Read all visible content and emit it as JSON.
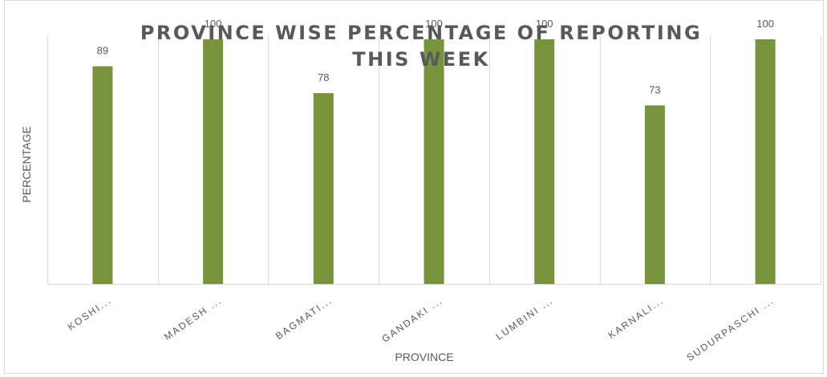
{
  "chart_data": {
    "type": "bar",
    "title_lines": [
      "PROVINCE WISE PERCENTAGE OF REPORTING",
      "THIS WEEK"
    ],
    "xlabel": "PROVINCE",
    "ylabel": "PERCENTAGE",
    "categories": [
      "KOSHI...",
      "MADESH ...",
      "BAGMATI...",
      "GANDAKI ...",
      "LUMBINI ...",
      "KARNALI...",
      "SUDURPASCHI ..."
    ],
    "values": [
      89,
      100,
      78,
      100,
      100,
      73,
      100
    ],
    "ylim": [
      0,
      100
    ],
    "grid": "vertical separators between categories",
    "legend": "none",
    "bar_color": "#77933c",
    "gridline_color": "#d9d9d9"
  }
}
